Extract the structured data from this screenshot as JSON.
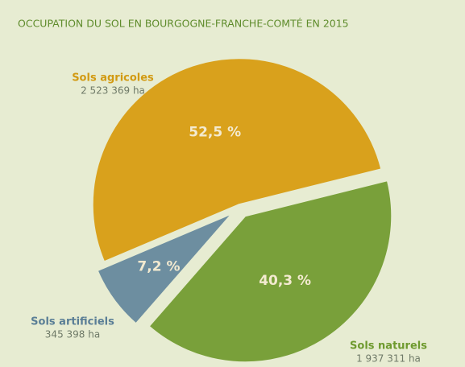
{
  "chart_data": {
    "type": "pie",
    "title": "OCCUPATION DU SOL EN BOURGOGNE-FRANCHE-COMTÉ EN 2015",
    "categories": [
      "Sols agricoles",
      "Sols naturels",
      "Sols artificiels"
    ],
    "values": [
      52.5,
      40.3,
      7.2
    ],
    "value_labels": [
      "52,5 %",
      "40,3 %",
      "7,2 %"
    ],
    "area_labels": [
      "2 523 369 ha",
      "1 937 311 ha",
      "345 398 ha"
    ],
    "colors": [
      "#d9a11c",
      "#79a03a",
      "#6d8ea0"
    ]
  }
}
